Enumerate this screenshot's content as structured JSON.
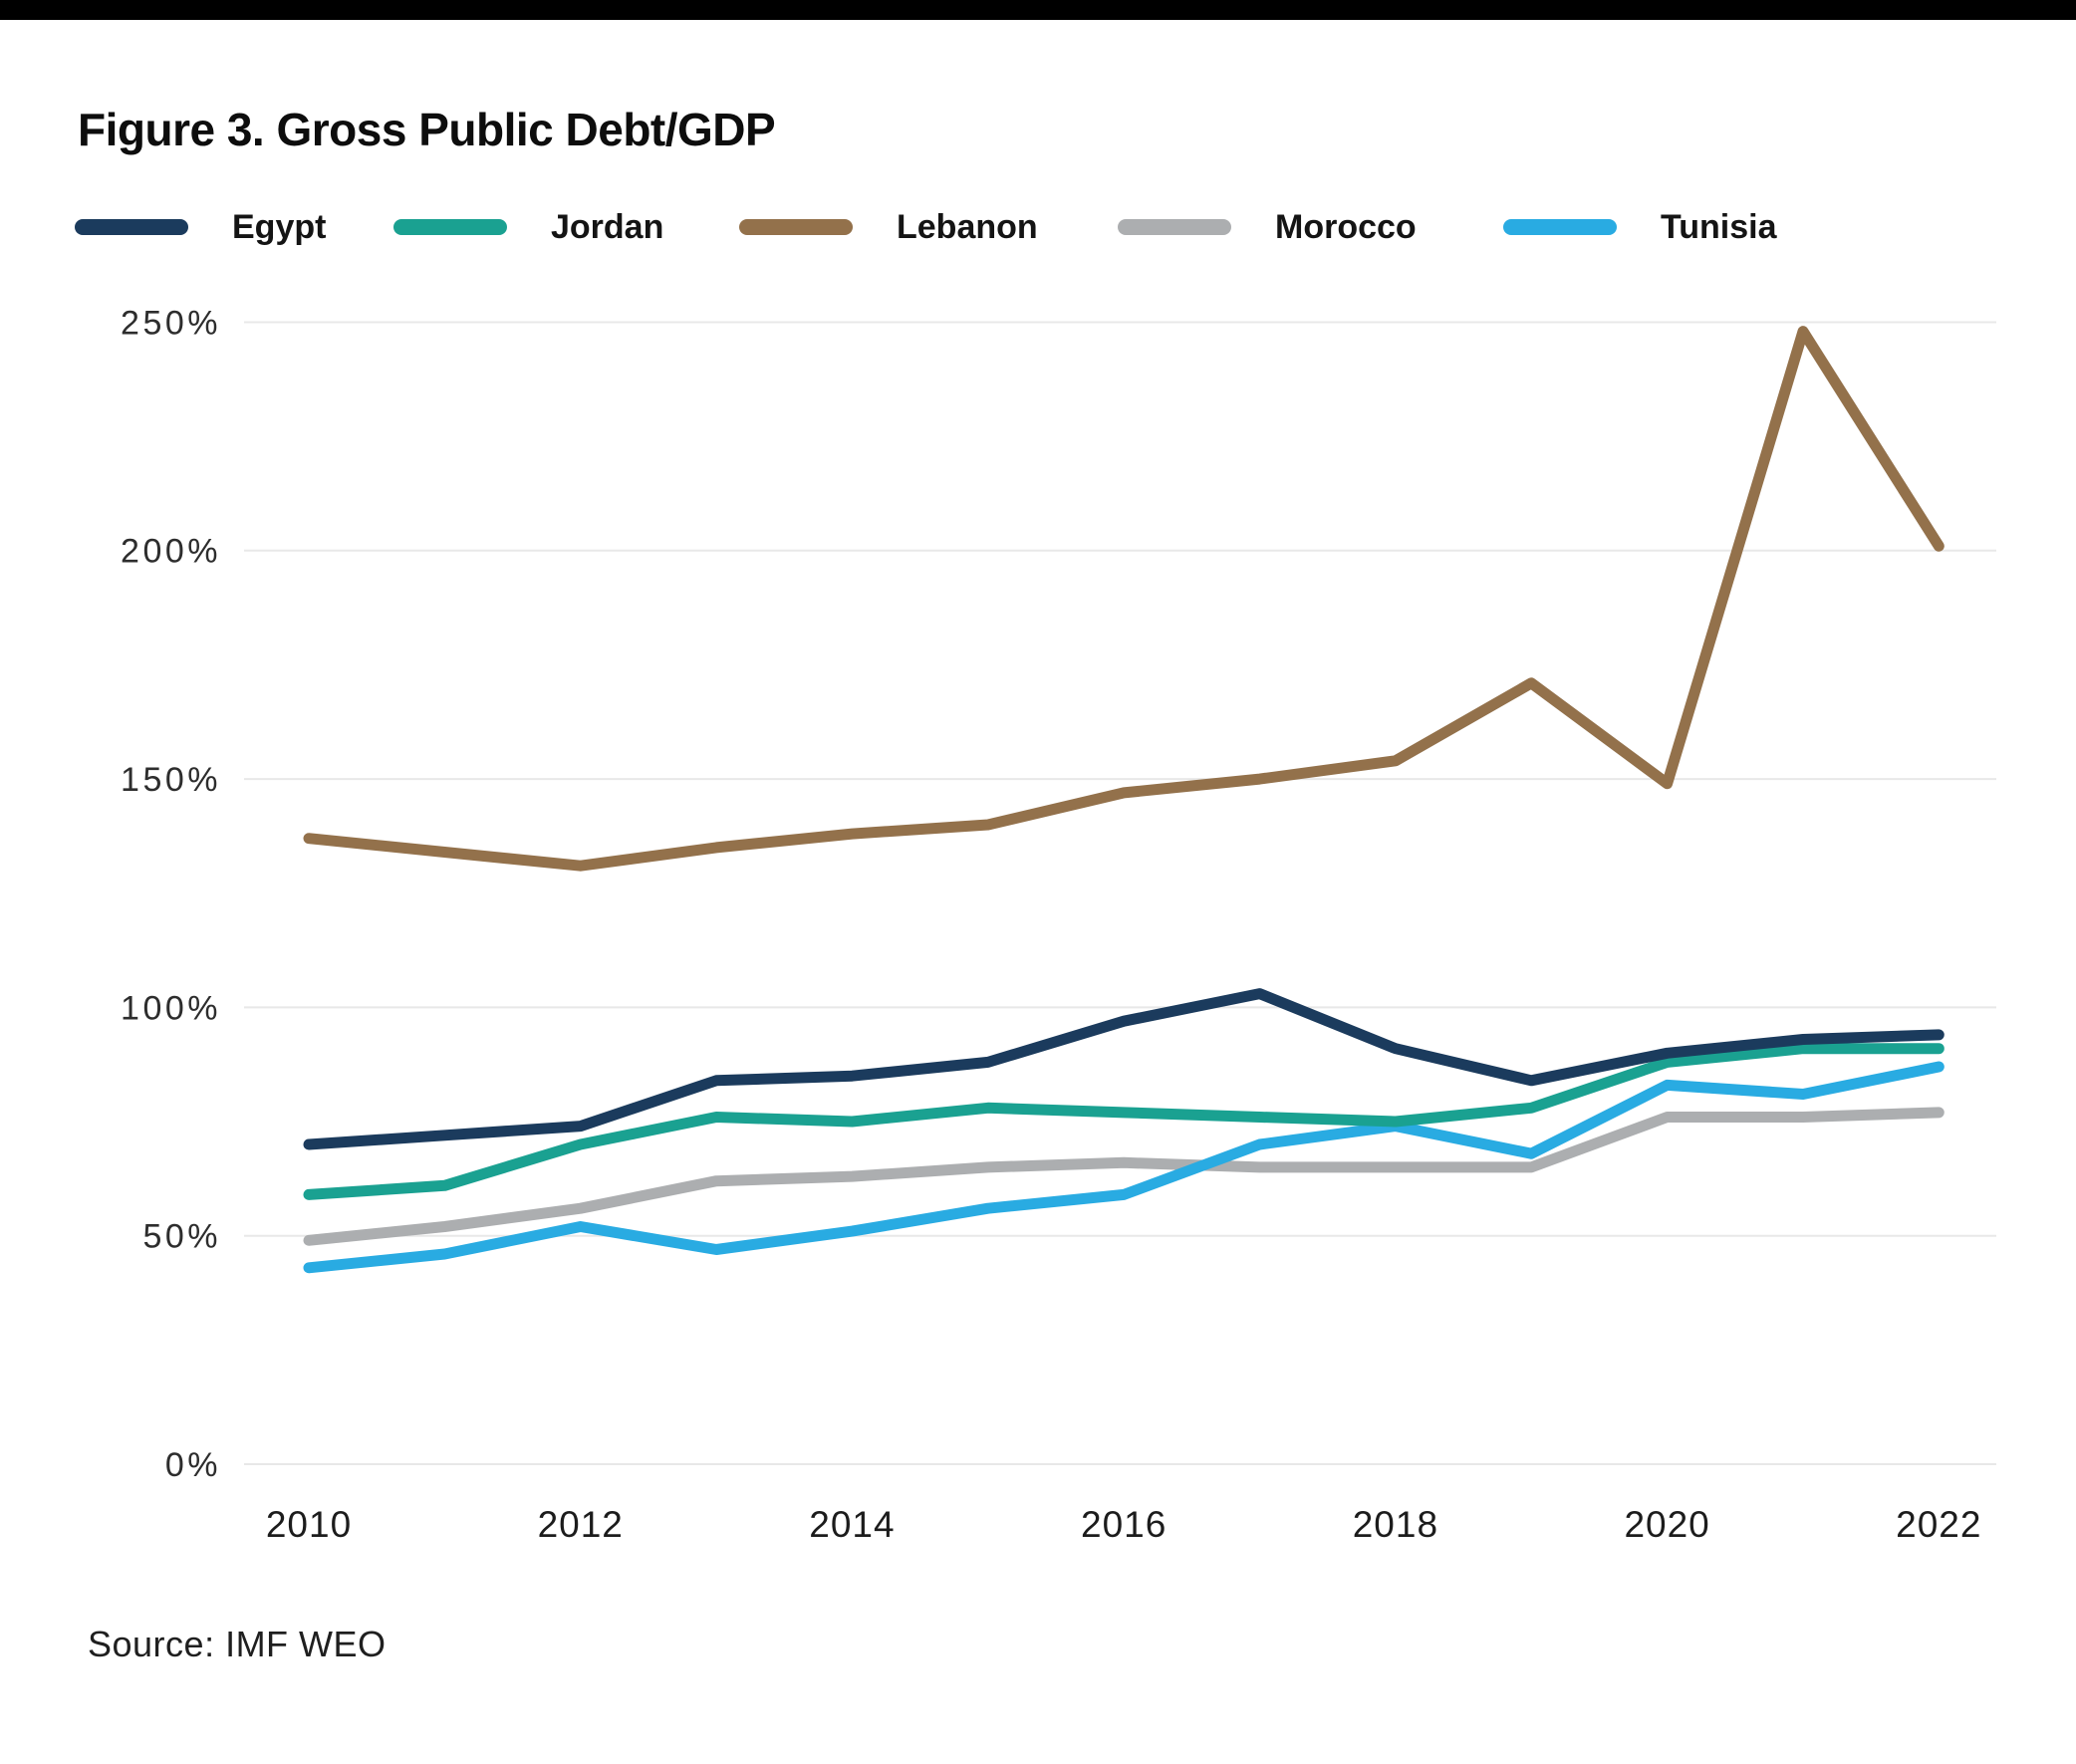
{
  "title": "Figure 3. Gross Public Debt/GDP",
  "source": "Source: IMF WEO",
  "legend": [
    {
      "label": "Egypt",
      "color": "#1B3B5D"
    },
    {
      "label": "Jordan",
      "color": "#1AA191"
    },
    {
      "label": "Lebanon",
      "color": "#93714B"
    },
    {
      "label": "Morocco",
      "color": "#ACAEB0"
    },
    {
      "label": "Tunisia",
      "color": "#29ABE2"
    }
  ],
  "chart_data": {
    "type": "line",
    "title": "Figure 3. Gross Public Debt/GDP",
    "x": [
      2010,
      2011,
      2012,
      2013,
      2014,
      2015,
      2016,
      2017,
      2018,
      2019,
      2020,
      2021,
      2022
    ],
    "series": [
      {
        "name": "Morocco",
        "color": "#ACAEB0",
        "values": [
          49,
          52,
          56,
          62,
          63,
          65,
          66,
          65,
          65,
          65,
          76,
          76,
          77
        ]
      },
      {
        "name": "Tunisia",
        "color": "#29ABE2",
        "values": [
          43,
          46,
          52,
          47,
          51,
          56,
          59,
          70,
          74,
          68,
          83,
          81,
          87
        ]
      },
      {
        "name": "Jordan",
        "color": "#1AA191",
        "values": [
          59,
          61,
          70,
          76,
          75,
          78,
          77,
          76,
          75,
          78,
          88,
          91,
          91
        ]
      },
      {
        "name": "Egypt",
        "color": "#1B3B5D",
        "values": [
          70,
          72,
          74,
          84,
          85,
          88,
          97,
          103,
          91,
          84,
          90,
          93,
          94
        ]
      },
      {
        "name": "Lebanon",
        "color": "#93714B",
        "values": [
          137,
          134,
          131,
          135,
          138,
          140,
          147,
          150,
          154,
          171,
          149,
          248,
          201
        ]
      }
    ],
    "xlabel": "",
    "ylabel": "",
    "ylim": [
      0,
      250
    ],
    "y_tick_values": [
      250,
      200,
      150,
      100,
      50,
      0
    ],
    "y_ticks": [
      "250%",
      "200%",
      "150%",
      "100%",
      "50%",
      "0%"
    ],
    "x_tick_values": [
      2010,
      2012,
      2014,
      2016,
      2018,
      2020,
      2022
    ],
    "x_ticks": [
      "2010",
      "2012",
      "2014",
      "2016",
      "2018",
      "2020",
      "2022"
    ],
    "grid": "horizontal",
    "legend_position": "top",
    "unit": "% of GDP"
  }
}
